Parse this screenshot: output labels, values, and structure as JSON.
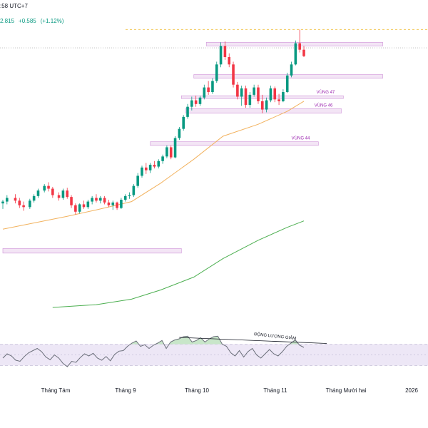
{
  "header": {
    "time": ":58 UTC+7",
    "price": "2.815",
    "change": "+0.585",
    "change_pct": "(+1.12%)"
  },
  "colors": {
    "up": "#089981",
    "down": "#f23645",
    "ema_fast": "#f2b25e",
    "ema_slow": "#4caf50",
    "zone_fill": "#f3e5f5",
    "zone_border": "#ce93d8",
    "zone_label": "#9c27b0",
    "rsi_line": "#6b6f7a",
    "rsi_band": "#ede7f6",
    "peak_line": "#f0c040"
  },
  "chart_data": {
    "type": "candlestick",
    "price_range": [
      19,
      50
    ],
    "x_axis": {
      "ticks": [
        "Tháng Tám",
        "Tháng 9",
        "Tháng 10",
        "Tháng 11",
        "Tháng Mười hai",
        "2026"
      ]
    },
    "zones": [
      {
        "label": "",
        "low": 48.1,
        "high": 48.5,
        "from": "2025-10-07",
        "to": "2025-12-31"
      },
      {
        "label": "",
        "low": 44.6,
        "high": 45.0,
        "from": "2025-10-01",
        "to": "2025-12-31"
      },
      {
        "label": "VÙNG 47",
        "low": 42.4,
        "high": 42.7,
        "from": "2025-09-25",
        "to": "2025-12-12"
      },
      {
        "label": "VÙNG 46",
        "low": 40.8,
        "high": 41.3,
        "from": "2025-09-27",
        "to": "2025-12-11"
      },
      {
        "label": "VÙNG 44",
        "low": 37.3,
        "high": 37.7,
        "from": "2025-09-10",
        "to": "2025-11-30"
      },
      {
        "label": "",
        "low": 25.6,
        "high": 26.1,
        "from": "2025-07-01",
        "to": "2025-09-25"
      }
    ],
    "resistance_dashed": 49.9,
    "last_price_dotted": 47.9,
    "ohlc": [
      [
        "2025-07-01",
        31.0,
        31.4,
        30.4,
        31.2
      ],
      [
        "2025-07-03",
        31.2,
        31.9,
        30.9,
        31.6
      ],
      [
        "2025-07-07",
        31.6,
        32.0,
        31.0,
        31.3
      ],
      [
        "2025-07-09",
        31.3,
        31.6,
        30.5,
        30.8
      ],
      [
        "2025-07-11",
        30.8,
        31.2,
        30.2,
        30.6
      ],
      [
        "2025-07-14",
        30.6,
        31.5,
        30.4,
        31.3
      ],
      [
        "2025-07-16",
        31.3,
        32.0,
        31.1,
        31.8
      ],
      [
        "2025-07-18",
        31.8,
        32.6,
        31.6,
        32.4
      ],
      [
        "2025-07-21",
        32.4,
        33.1,
        32.2,
        32.9
      ],
      [
        "2025-07-23",
        32.9,
        33.3,
        32.3,
        32.6
      ],
      [
        "2025-07-25",
        32.6,
        32.8,
        31.6,
        31.9
      ],
      [
        "2025-07-28",
        31.9,
        32.2,
        31.3,
        31.6
      ],
      [
        "2025-07-30",
        31.6,
        32.6,
        31.4,
        32.4
      ],
      [
        "2025-08-01",
        32.4,
        32.7,
        31.5,
        31.7
      ],
      [
        "2025-08-03",
        31.7,
        31.9,
        30.5,
        30.8
      ],
      [
        "2025-08-05",
        30.8,
        31.0,
        29.8,
        30.1
      ],
      [
        "2025-08-07",
        30.1,
        31.0,
        29.9,
        30.9
      ],
      [
        "2025-08-09",
        30.9,
        31.3,
        30.4,
        30.6
      ],
      [
        "2025-08-11",
        30.6,
        31.4,
        30.4,
        31.2
      ],
      [
        "2025-08-13",
        31.2,
        31.8,
        30.9,
        31.6
      ],
      [
        "2025-08-15",
        31.6,
        32.0,
        31.1,
        31.3
      ],
      [
        "2025-08-17",
        31.3,
        31.8,
        31.0,
        31.6
      ],
      [
        "2025-08-19",
        31.6,
        31.8,
        30.9,
        31.1
      ],
      [
        "2025-08-21",
        31.1,
        31.4,
        30.6,
        30.8
      ],
      [
        "2025-08-23",
        30.8,
        31.3,
        30.3,
        31.1
      ],
      [
        "2025-08-25",
        31.1,
        31.2,
        30.3,
        30.5
      ],
      [
        "2025-08-27",
        30.5,
        31.6,
        30.4,
        31.4
      ],
      [
        "2025-08-29",
        31.4,
        32.0,
        31.2,
        31.8
      ],
      [
        "2025-08-31",
        31.8,
        32.2,
        31.5,
        31.9
      ],
      [
        "2025-09-02",
        31.9,
        33.1,
        31.7,
        32.9
      ],
      [
        "2025-09-04",
        32.9,
        34.3,
        32.7,
        34.0
      ],
      [
        "2025-09-06",
        34.0,
        35.1,
        33.8,
        34.9
      ],
      [
        "2025-09-08",
        34.9,
        35.4,
        34.2,
        34.6
      ],
      [
        "2025-09-10",
        34.6,
        35.4,
        34.3,
        35.2
      ],
      [
        "2025-09-12",
        35.2,
        35.6,
        34.8,
        35.0
      ],
      [
        "2025-09-14",
        35.0,
        35.8,
        34.8,
        35.6
      ],
      [
        "2025-09-16",
        35.6,
        36.3,
        35.3,
        36.1
      ],
      [
        "2025-09-18",
        36.1,
        37.3,
        35.9,
        37.1
      ],
      [
        "2025-09-20",
        37.1,
        37.3,
        35.8,
        36.0
      ],
      [
        "2025-09-22",
        36.0,
        38.3,
        35.9,
        38.1
      ],
      [
        "2025-09-24",
        38.1,
        39.3,
        37.9,
        39.1
      ],
      [
        "2025-09-26",
        39.1,
        40.6,
        38.9,
        40.4
      ],
      [
        "2025-09-28",
        40.4,
        41.8,
        40.2,
        41.5
      ],
      [
        "2025-09-30",
        41.5,
        42.6,
        41.1,
        42.2
      ],
      [
        "2025-10-02",
        42.2,
        42.7,
        41.5,
        41.8
      ],
      [
        "2025-10-04",
        41.8,
        42.7,
        41.6,
        42.5
      ],
      [
        "2025-10-06",
        42.5,
        43.9,
        42.3,
        43.6
      ],
      [
        "2025-10-08",
        43.6,
        44.3,
        42.8,
        43.1
      ],
      [
        "2025-10-10",
        43.1,
        44.6,
        42.9,
        44.3
      ],
      [
        "2025-10-12",
        44.3,
        46.4,
        44.1,
        46.1
      ],
      [
        "2025-10-14",
        46.1,
        48.5,
        45.8,
        48.1
      ],
      [
        "2025-10-16",
        48.1,
        48.6,
        46.6,
        46.9
      ],
      [
        "2025-10-18",
        46.9,
        47.3,
        45.8,
        46.1
      ],
      [
        "2025-10-20",
        46.1,
        46.4,
        43.6,
        43.9
      ],
      [
        "2025-10-22",
        43.9,
        44.2,
        42.3,
        42.6
      ],
      [
        "2025-10-24",
        42.6,
        43.8,
        41.6,
        43.5
      ],
      [
        "2025-10-26",
        43.5,
        43.8,
        41.4,
        41.7
      ],
      [
        "2025-10-28",
        41.7,
        43.1,
        41.4,
        42.8
      ],
      [
        "2025-10-30",
        42.8,
        43.9,
        42.6,
        43.6
      ],
      [
        "2025-11-01",
        43.6,
        43.9,
        41.8,
        42.1
      ],
      [
        "2025-11-03",
        42.1,
        42.8,
        40.8,
        41.2
      ],
      [
        "2025-11-05",
        41.2,
        42.5,
        40.9,
        42.2
      ],
      [
        "2025-11-07",
        42.2,
        43.8,
        42.0,
        43.5
      ],
      [
        "2025-11-09",
        43.5,
        43.7,
        42.0,
        42.3
      ],
      [
        "2025-11-11",
        42.3,
        42.9,
        41.7,
        42.1
      ],
      [
        "2025-11-13",
        42.1,
        43.4,
        42.0,
        43.1
      ],
      [
        "2025-11-15",
        43.1,
        45.2,
        43.0,
        44.9
      ],
      [
        "2025-11-17",
        44.9,
        46.4,
        44.7,
        46.1
      ],
      [
        "2025-11-19",
        46.1,
        48.7,
        46.0,
        48.4
      ],
      [
        "2025-11-21",
        48.4,
        49.9,
        47.4,
        47.7
      ],
      [
        "2025-11-23",
        47.7,
        48.1,
        46.9,
        47.0
      ]
    ],
    "ema_fast": [
      [
        "2025-07-01",
        28.2
      ],
      [
        "2025-08-01",
        29.6
      ],
      [
        "2025-08-15",
        30.3
      ],
      [
        "2025-09-01",
        31.2
      ],
      [
        "2025-09-15",
        33.2
      ],
      [
        "2025-10-01",
        35.8
      ],
      [
        "2025-10-15",
        38.3
      ],
      [
        "2025-11-01",
        39.6
      ],
      [
        "2025-11-15",
        41.0
      ],
      [
        "2025-11-23",
        42.1
      ]
    ],
    "ema_slow": [
      [
        "2025-07-25",
        19.7
      ],
      [
        "2025-08-15",
        20.0
      ],
      [
        "2025-09-01",
        20.6
      ],
      [
        "2025-09-15",
        21.6
      ],
      [
        "2025-10-01",
        23.0
      ],
      [
        "2025-10-15",
        25.0
      ],
      [
        "2025-11-01",
        27.0
      ],
      [
        "2025-11-15",
        28.4
      ],
      [
        "2025-11-23",
        29.1
      ]
    ],
    "rsi": {
      "values": [
        44,
        52,
        48,
        40,
        38,
        47,
        54,
        58,
        62,
        56,
        46,
        41,
        50,
        44,
        34,
        28,
        38,
        36,
        45,
        52,
        48,
        53,
        44,
        40,
        47,
        39,
        51,
        57,
        58,
        66,
        72,
        76,
        66,
        69,
        62,
        68,
        72,
        77,
        62,
        74,
        78,
        80,
        84,
        85,
        74,
        77,
        82,
        74,
        80,
        84,
        85,
        70,
        66,
        54,
        48,
        58,
        46,
        56,
        62,
        50,
        44,
        52,
        60,
        52,
        48,
        56,
        66,
        72,
        78,
        68,
        64
      ],
      "divergence_label": "ĐỘNG LƯỢNG GIẢM"
    }
  }
}
